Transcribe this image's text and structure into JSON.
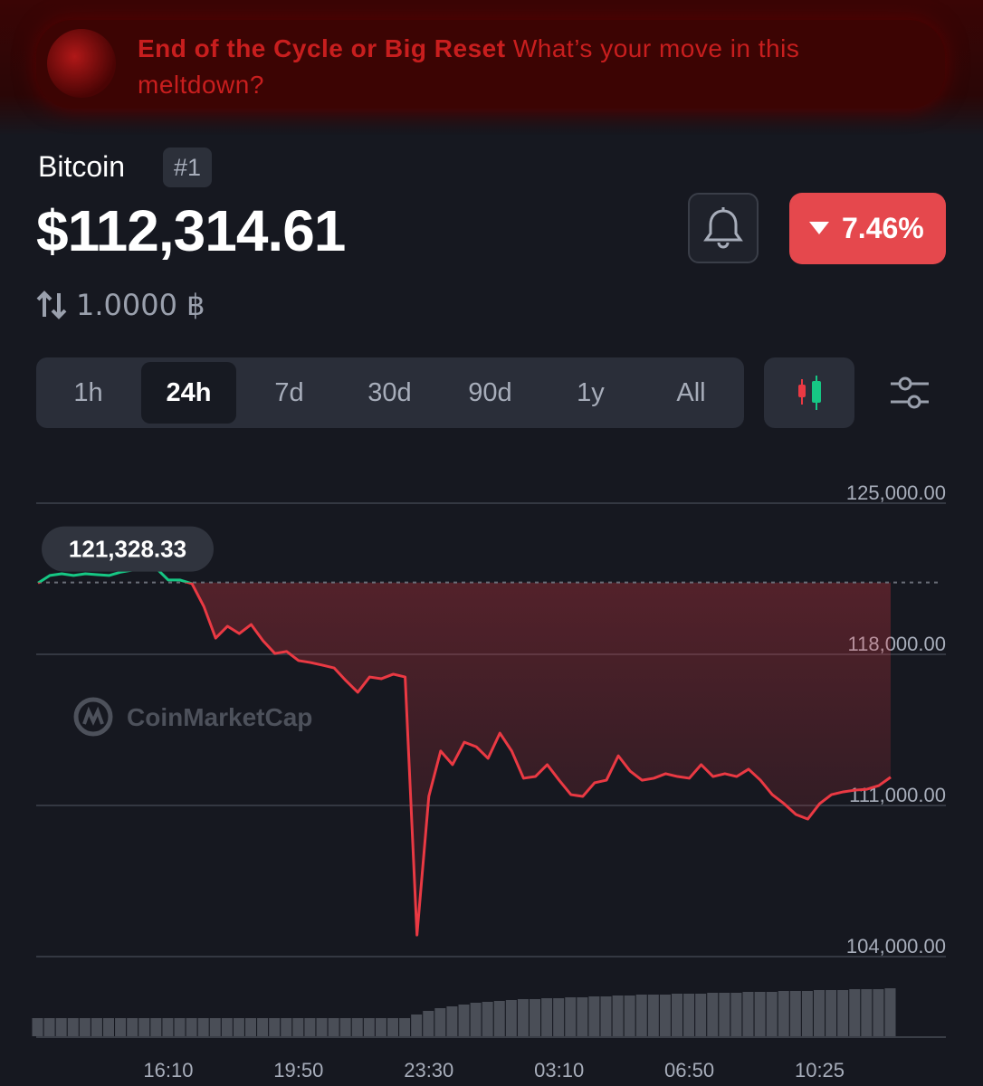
{
  "banner": {
    "title": "End of the Cycle or Big Reset",
    "text": "What’s your move in this meltdown?"
  },
  "coin": {
    "name": "Bitcoin",
    "rank": "#1",
    "price": "$112,314.61",
    "change": "7.46%",
    "amount": "1.0000 ฿"
  },
  "timeframes": [
    "1h",
    "24h",
    "7d",
    "30d",
    "90d",
    "1y",
    "All"
  ],
  "active_timeframe": 1,
  "chart_data": {
    "type": "line",
    "watermark": "CoinMarketCap",
    "reference": {
      "value": 121328.33,
      "label": "121,328.33"
    },
    "up_color": "#16c784",
    "down_color": "#ea3943",
    "categories": [
      null,
      null,
      null,
      null,
      null,
      null,
      null,
      null,
      null,
      null,
      null,
      "16:10",
      null,
      null,
      null,
      null,
      null,
      null,
      null,
      null,
      null,
      null,
      "19:50",
      null,
      null,
      null,
      null,
      null,
      null,
      null,
      null,
      null,
      null,
      "23:30",
      null,
      null,
      null,
      null,
      null,
      null,
      null,
      null,
      null,
      null,
      "03:10",
      null,
      null,
      null,
      null,
      null,
      null,
      null,
      null,
      null,
      null,
      "06:50",
      null,
      null,
      null,
      null,
      null,
      null,
      null,
      null,
      null,
      null,
      "10:25",
      null,
      null,
      null,
      null,
      null,
      null
    ],
    "values": [
      121300,
      121650,
      121730,
      121650,
      121730,
      121690,
      121650,
      121810,
      121900,
      122150,
      121980,
      121440,
      121440,
      121270,
      120220,
      118750,
      119300,
      118960,
      119380,
      118630,
      118040,
      118130,
      117710,
      117620,
      117500,
      117370,
      116780,
      116240,
      116950,
      116870,
      117080,
      116950,
      105000,
      111420,
      113520,
      112890,
      113930,
      113720,
      113180,
      114350,
      113520,
      112260,
      112340,
      112890,
      112170,
      111500,
      111420,
      112050,
      112170,
      113300,
      112590,
      112170,
      112260,
      112470,
      112340,
      112260,
      112890,
      112340,
      112470,
      112340,
      112680,
      112170,
      111500,
      111080,
      110580,
      110370,
      111080,
      111500,
      111630,
      111710,
      111750,
      111920,
      112310
    ],
    "volume": [
      20,
      20,
      20,
      20,
      20,
      20,
      20,
      20,
      20,
      20,
      20,
      20,
      20,
      20,
      20,
      20,
      20,
      20,
      20,
      20,
      20,
      20,
      20,
      20,
      20,
      20,
      20,
      20,
      20,
      20,
      20,
      20,
      24,
      28,
      31,
      33,
      35,
      37,
      38,
      39,
      40,
      41,
      41,
      42,
      42,
      43,
      43,
      44,
      44,
      45,
      45,
      46,
      46,
      46,
      47,
      47,
      47,
      48,
      48,
      48,
      49,
      49,
      49,
      50,
      50,
      50,
      51,
      51,
      51,
      52,
      52,
      52,
      53
    ],
    "volume_lim": [
      0,
      60
    ],
    "ylim": [
      104000,
      125000
    ],
    "yticks": [
      {
        "value": 104000,
        "label": "104,000.00"
      },
      {
        "value": 111000,
        "label": "111,000.00"
      },
      {
        "value": 118000,
        "label": "118,000.00"
      },
      {
        "value": 125000,
        "label": "125,000.00"
      }
    ],
    "grid": true
  }
}
